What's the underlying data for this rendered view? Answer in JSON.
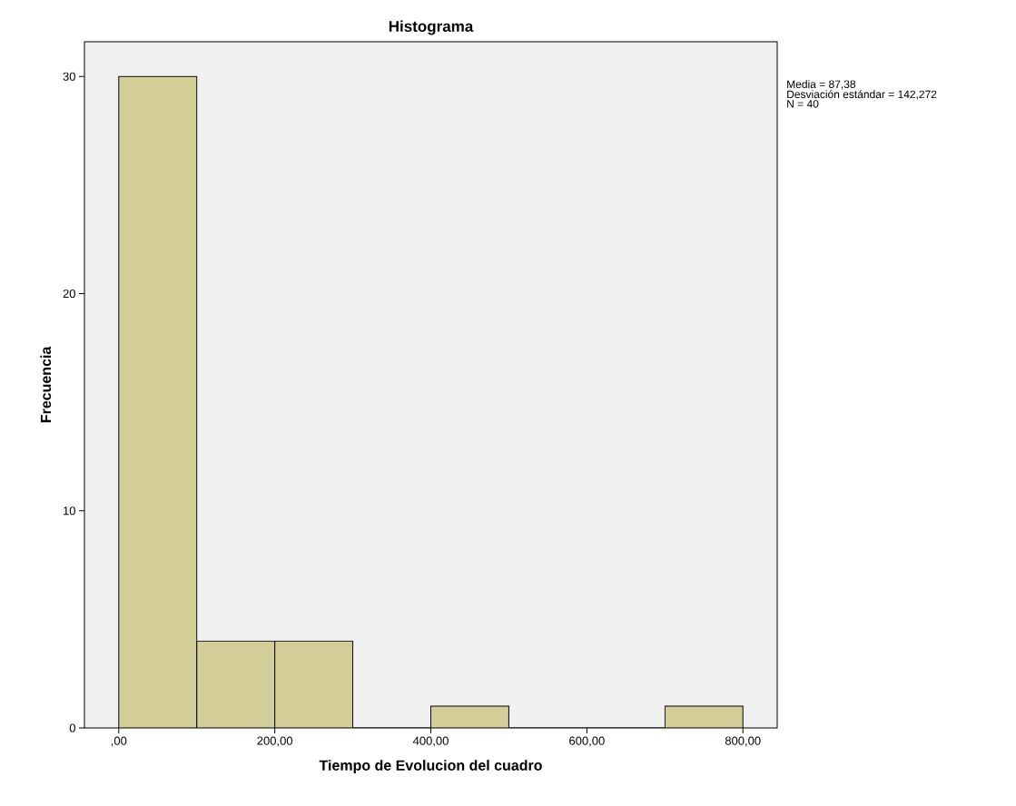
{
  "chart_data": {
    "type": "histogram",
    "title": "Histograma",
    "xlabel": "Tiempo de Evolucion del cuadro",
    "ylabel": "Frecuencia",
    "bins": [
      0,
      100,
      200,
      300,
      400,
      500,
      600,
      700,
      800
    ],
    "values": [
      30,
      4,
      4,
      0,
      1,
      0,
      0,
      1
    ],
    "color": "#d3ce97",
    "xlim": [
      -44,
      844
    ],
    "ylim": [
      0,
      31.6
    ],
    "xticks": [
      {
        "value": 0,
        "label": ",00"
      },
      {
        "value": 200,
        "label": "200,00"
      },
      {
        "value": 400,
        "label": "400,00"
      },
      {
        "value": 600,
        "label": "600,00"
      },
      {
        "value": 800,
        "label": "800,00"
      }
    ],
    "yticks": [
      0,
      10,
      20,
      30
    ],
    "grid": false,
    "annotations": [
      "Media = 87,38",
      "Desviación estándar = 142,272",
      "N = 40"
    ]
  }
}
